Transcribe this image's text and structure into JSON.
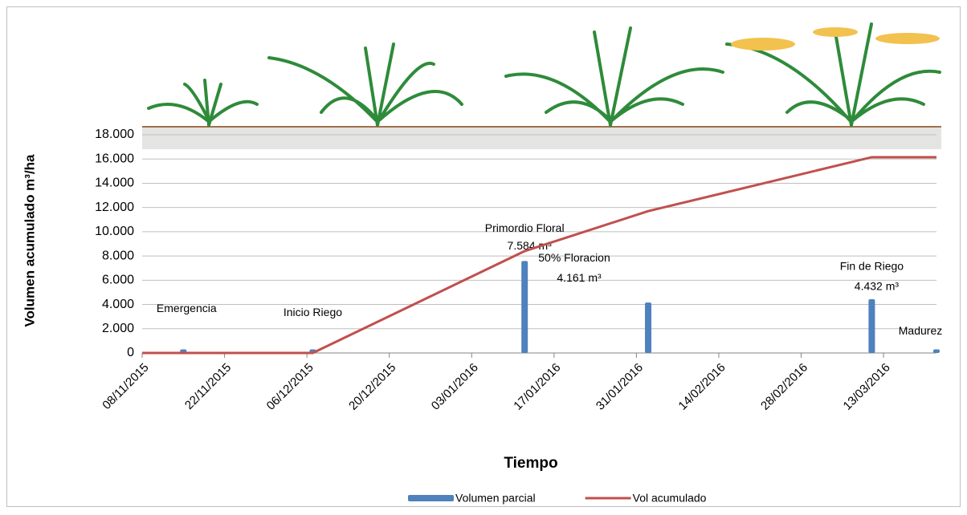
{
  "chart_data": {
    "type": "bar-line",
    "x_label": "Tiempo",
    "y_label": "Volumen acumulado m³/ha",
    "xlim": [
      "2015-11-08",
      "2016-03-22"
    ],
    "xticks": [
      {
        "value": "2015-11-08",
        "label": "08/11/2015"
      },
      {
        "value": "2015-11-22",
        "label": "22/11/2015"
      },
      {
        "value": "2015-12-06",
        "label": "06/12/2015"
      },
      {
        "value": "2015-12-20",
        "label": "20/12/2015"
      },
      {
        "value": "2016-01-03",
        "label": "03/01/2016"
      },
      {
        "value": "2016-01-17",
        "label": "17/01/2016"
      },
      {
        "value": "2016-01-31",
        "label": "31/01/2016"
      },
      {
        "value": "2016-02-14",
        "label": "14/02/2016"
      },
      {
        "value": "2016-02-28",
        "label": "28/02/2016"
      },
      {
        "value": "2016-03-13",
        "label": "13/03/2016"
      }
    ],
    "ylim": [
      0,
      18000
    ],
    "yticks": [
      0,
      {
        "value": 2000,
        "label": "2.000"
      },
      {
        "value": 4000,
        "label": "4.000"
      },
      {
        "value": 6000,
        "label": "6.000"
      },
      {
        "value": 8000,
        "label": "8.000"
      },
      {
        "value": 10000,
        "label": "10.000"
      },
      {
        "value": 12000,
        "label": "12.000"
      },
      {
        "value": 14000,
        "label": "14.000"
      },
      {
        "value": 16000,
        "label": "16.000"
      },
      {
        "value": 18000,
        "label": "18.000"
      }
    ],
    "grid": true,
    "series": [
      {
        "name": "Volumen parcial",
        "type": "bar",
        "color": "#4f81bd",
        "x": [
          "2015-11-15",
          "2015-12-07",
          "2016-01-12",
          "2016-02-02",
          "2016-03-11",
          "2016-03-22"
        ],
        "values": [
          300,
          300,
          7584,
          4161,
          4432,
          300
        ],
        "value_labels": [
          null,
          null,
          "7.584 m³",
          "4.161 m³",
          "4.432 m³",
          null
        ],
        "annotations": [
          "Emergencia",
          "Inicio Riego",
          "Primordio Floral",
          "50% Floracion",
          "Fin de Riego",
          "Madurez"
        ]
      },
      {
        "name": "Vol acumulado",
        "type": "line",
        "color": "#c0504d",
        "x": [
          "2015-11-08",
          "2015-11-15",
          "2015-12-07",
          "2016-01-12",
          "2016-02-02",
          "2016-03-11",
          "2016-03-22"
        ],
        "values": [
          0,
          0,
          0,
          8400,
          11700,
          16150,
          16150
        ]
      }
    ],
    "legend": "bottom"
  }
}
